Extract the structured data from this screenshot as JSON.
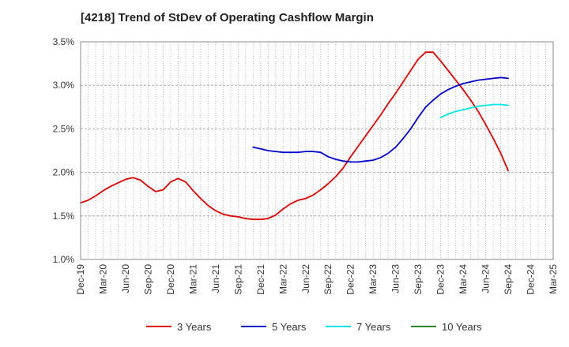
{
  "chart_data": {
    "type": "line",
    "title": "[4218]  Trend of StDev of Operating Cashflow Margin",
    "xlabel": "",
    "ylabel": "",
    "x_ticks": [
      "Dec-19",
      "Mar-20",
      "Jun-20",
      "Sep-20",
      "Dec-20",
      "Mar-21",
      "Jun-21",
      "Sep-21",
      "Dec-21",
      "Mar-22",
      "Jun-22",
      "Sep-22",
      "Dec-22",
      "Mar-23",
      "Jun-23",
      "Sep-23",
      "Dec-23",
      "Mar-24",
      "Jun-24",
      "Sep-24",
      "Dec-24",
      "Mar-25"
    ],
    "y_ticks": [
      "1.0%",
      "1.5%",
      "2.0%",
      "2.5%",
      "3.0%",
      "3.5%"
    ],
    "ylim": [
      1.0,
      3.5
    ],
    "y_unit": "%",
    "grid": "vertical dotted, horizontal dashed",
    "legend_position": "bottom",
    "series": [
      {
        "name": "3 Years",
        "color": "#dd0000",
        "points": [
          [
            "Dec-19",
            1.65
          ],
          [
            "Jan-20",
            1.68
          ],
          [
            "Feb-20",
            1.73
          ],
          [
            "Mar-20",
            1.79
          ],
          [
            "Apr-20",
            1.84
          ],
          [
            "May-20",
            1.88
          ],
          [
            "Jun-20",
            1.92
          ],
          [
            "Jul-20",
            1.94
          ],
          [
            "Aug-20",
            1.91
          ],
          [
            "Sep-20",
            1.84
          ],
          [
            "Oct-20",
            1.78
          ],
          [
            "Nov-20",
            1.8
          ],
          [
            "Dec-20",
            1.89
          ],
          [
            "Jan-21",
            1.93
          ],
          [
            "Feb-21",
            1.89
          ],
          [
            "Mar-21",
            1.79
          ],
          [
            "Apr-21",
            1.7
          ],
          [
            "May-21",
            1.62
          ],
          [
            "Jun-21",
            1.56
          ],
          [
            "Jul-21",
            1.52
          ],
          [
            "Aug-21",
            1.5
          ],
          [
            "Sep-21",
            1.49
          ],
          [
            "Oct-21",
            1.47
          ],
          [
            "Nov-21",
            1.46
          ],
          [
            "Dec-21",
            1.46
          ],
          [
            "Jan-22",
            1.47
          ],
          [
            "Feb-22",
            1.51
          ],
          [
            "Mar-22",
            1.58
          ],
          [
            "Apr-22",
            1.64
          ],
          [
            "May-22",
            1.68
          ],
          [
            "Jun-22",
            1.7
          ],
          [
            "Jul-22",
            1.74
          ],
          [
            "Aug-22",
            1.8
          ],
          [
            "Sep-22",
            1.87
          ],
          [
            "Oct-22",
            1.95
          ],
          [
            "Nov-22",
            2.05
          ],
          [
            "Dec-22",
            2.18
          ],
          [
            "Jan-23",
            2.3
          ],
          [
            "Feb-23",
            2.42
          ],
          [
            "Mar-23",
            2.54
          ],
          [
            "Apr-23",
            2.66
          ],
          [
            "May-23",
            2.79
          ],
          [
            "Jun-23",
            2.91
          ],
          [
            "Jul-23",
            3.04
          ],
          [
            "Aug-23",
            3.17
          ],
          [
            "Sep-23",
            3.3
          ],
          [
            "Oct-23",
            3.38
          ],
          [
            "Nov-23",
            3.38
          ],
          [
            "Dec-23",
            3.28
          ],
          [
            "Jan-24",
            3.17
          ],
          [
            "Feb-24",
            3.06
          ],
          [
            "Mar-24",
            2.95
          ],
          [
            "Apr-24",
            2.83
          ],
          [
            "May-24",
            2.7
          ],
          [
            "Jun-24",
            2.55
          ],
          [
            "Jul-24",
            2.39
          ],
          [
            "Aug-24",
            2.22
          ],
          [
            "Sep-24",
            2.02
          ]
        ]
      },
      {
        "name": "5 Years",
        "color": "#0000cc",
        "points": [
          [
            "Nov-21",
            2.29
          ],
          [
            "Dec-21",
            2.27
          ],
          [
            "Jan-22",
            2.25
          ],
          [
            "Feb-22",
            2.24
          ],
          [
            "Mar-22",
            2.23
          ],
          [
            "Apr-22",
            2.23
          ],
          [
            "May-22",
            2.23
          ],
          [
            "Jun-22",
            2.24
          ],
          [
            "Jul-22",
            2.24
          ],
          [
            "Aug-22",
            2.23
          ],
          [
            "Sep-22",
            2.18
          ],
          [
            "Oct-22",
            2.15
          ],
          [
            "Nov-22",
            2.13
          ],
          [
            "Dec-22",
            2.12
          ],
          [
            "Jan-23",
            2.12
          ],
          [
            "Feb-23",
            2.13
          ],
          [
            "Mar-23",
            2.14
          ],
          [
            "Apr-23",
            2.17
          ],
          [
            "May-23",
            2.22
          ],
          [
            "Jun-23",
            2.29
          ],
          [
            "Jul-23",
            2.39
          ],
          [
            "Aug-23",
            2.5
          ],
          [
            "Sep-23",
            2.63
          ],
          [
            "Oct-23",
            2.75
          ],
          [
            "Nov-23",
            2.83
          ],
          [
            "Dec-23",
            2.9
          ],
          [
            "Jan-24",
            2.95
          ],
          [
            "Feb-24",
            2.99
          ],
          [
            "Mar-24",
            3.02
          ],
          [
            "Apr-24",
            3.04
          ],
          [
            "May-24",
            3.06
          ],
          [
            "Jun-24",
            3.07
          ],
          [
            "Jul-24",
            3.08
          ],
          [
            "Aug-24",
            3.09
          ],
          [
            "Sep-24",
            3.08
          ]
        ]
      },
      {
        "name": "7 Years",
        "color": "#00e5e5",
        "points": [
          [
            "Dec-23",
            2.63
          ],
          [
            "Jan-24",
            2.67
          ],
          [
            "Feb-24",
            2.7
          ],
          [
            "Mar-24",
            2.72
          ],
          [
            "Apr-24",
            2.74
          ],
          [
            "May-24",
            2.76
          ],
          [
            "Jun-24",
            2.77
          ],
          [
            "Jul-24",
            2.78
          ],
          [
            "Aug-24",
            2.78
          ],
          [
            "Sep-24",
            2.77
          ]
        ]
      },
      {
        "name": "10 Years",
        "color": "#228822",
        "points": []
      }
    ]
  }
}
